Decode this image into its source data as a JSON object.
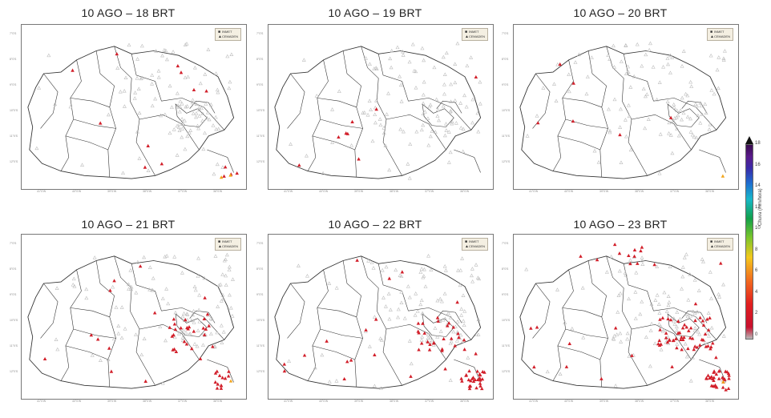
{
  "panels": [
    {
      "title": "10 AGO – 18 BRT",
      "red_stations": 14,
      "orange_stations": 2
    },
    {
      "title": "10 AGO – 19 BRT",
      "red_stations": 8,
      "orange_stations": 0
    },
    {
      "title": "10 AGO – 20 BRT",
      "red_stations": 6,
      "orange_stations": 1
    },
    {
      "title": "10 AGO – 21 BRT",
      "red_stations": 50,
      "orange_stations": 1
    },
    {
      "title": "10 AGO – 22 BRT",
      "red_stations": 70,
      "orange_stations": 0
    },
    {
      "title": "10 AGO – 23 BRT",
      "red_stations": 110,
      "orange_stations": 1
    }
  ],
  "legend": {
    "item1": "INMET",
    "item2": "CEMADEN"
  },
  "map_ticks": {
    "x": [
      "41°0'W",
      "40°0'W",
      "39°0'W",
      "38°0'W",
      "37°0'W",
      "36°0'W"
    ],
    "y": [
      "7°0'S",
      "8°0'S",
      "9°0'S",
      "10°0'S",
      "11°0'S",
      "12°0'S"
    ]
  },
  "colorbar": {
    "label": "Chuva (mm/hora)",
    "ticks": [
      "18",
      "16",
      "14",
      "12",
      "10",
      "8",
      "6",
      "4",
      "2",
      "0"
    ]
  },
  "colors": {
    "no_rain": "#bdbdbd",
    "light_rain": "#d21f2a",
    "moderate_rain": "#f2a51c",
    "boundary": "#333333",
    "legend_bg": "#f4efe2"
  }
}
